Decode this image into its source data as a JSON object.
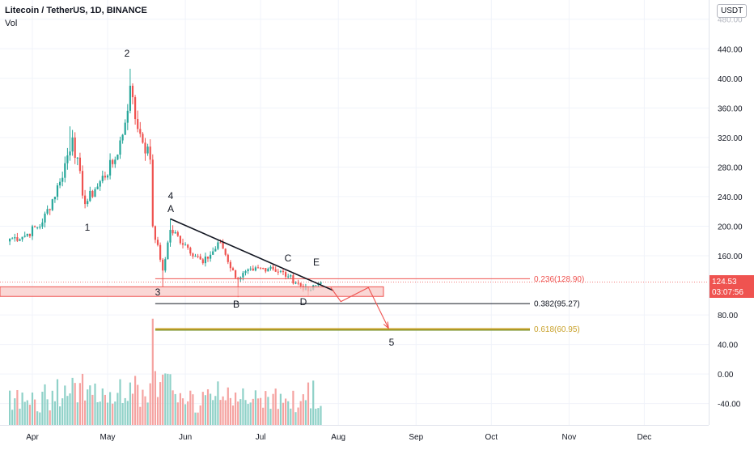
{
  "header": {
    "title": "Litecoin / TetherUS, 1D, BINANCE",
    "volume_label": "Vol",
    "currency": "USDT"
  },
  "price_axis": {
    "ticks": [
      "440.00",
      "400.00",
      "360.00",
      "320.00",
      "280.00",
      "240.00",
      "200.00",
      "160.00",
      "80.00",
      "40.00",
      "0.00",
      "-40.00"
    ],
    "top_partial": "480.00"
  },
  "time_axis": {
    "ticks": [
      "Apr",
      "May",
      "Jun",
      "Jul",
      "Aug",
      "Sep",
      "Oct",
      "Nov",
      "Dec"
    ]
  },
  "last_price": {
    "price": "124.53",
    "countdown": "03:07:56"
  },
  "fib_levels": [
    {
      "label": "0.236(128.90)",
      "color": "#ef5350"
    },
    {
      "label": "0.382(95.27)",
      "color": "#131722"
    },
    {
      "label": "0.618(60.95)",
      "color": "#c8a028"
    }
  ],
  "wave_labels": [
    "1",
    "2",
    "3",
    "4",
    "5",
    "A",
    "B",
    "C",
    "D",
    "E"
  ],
  "colors": {
    "up": "#26a69a",
    "down": "#ef5350",
    "volume_up": "#8fd1c8",
    "volume_down": "#f5a3a1",
    "zone": "#f8c9c7",
    "trendline": "#131722"
  },
  "chart_data": {
    "type": "candlestick",
    "title": "Litecoin / TetherUS, 1D, BINANCE",
    "ylabel": "USDT",
    "ylim": [
      -60,
      500
    ],
    "x_ticks": [
      "Apr",
      "May",
      "Jun",
      "Jul",
      "Aug",
      "Sep",
      "Oct",
      "Nov",
      "Dec"
    ],
    "close_anchors": [
      {
        "date": "2021-03-23",
        "close": 183
      },
      {
        "date": "2021-03-29",
        "close": 187
      },
      {
        "date": "2021-04-05",
        "close": 205
      },
      {
        "date": "2021-04-12",
        "close": 260
      },
      {
        "date": "2021-04-17",
        "close": 320
      },
      {
        "date": "2021-04-22",
        "close": 230
      },
      {
        "date": "2021-04-26",
        "close": 250
      },
      {
        "date": "2021-05-04",
        "close": 290
      },
      {
        "date": "2021-05-08",
        "close": 340
      },
      {
        "date": "2021-05-10",
        "close": 390
      },
      {
        "date": "2021-05-12",
        "close": 345
      },
      {
        "date": "2021-05-14",
        "close": 325
      },
      {
        "date": "2021-05-18",
        "close": 290
      },
      {
        "date": "2021-05-19",
        "close": 200
      },
      {
        "date": "2021-05-23",
        "close": 140
      },
      {
        "date": "2021-05-26",
        "close": 195
      },
      {
        "date": "2021-06-01",
        "close": 175
      },
      {
        "date": "2021-06-08",
        "close": 150
      },
      {
        "date": "2021-06-15",
        "close": 178
      },
      {
        "date": "2021-06-21",
        "close": 130
      },
      {
        "date": "2021-06-28",
        "close": 140
      },
      {
        "date": "2021-07-05",
        "close": 145
      },
      {
        "date": "2021-07-12",
        "close": 132
      },
      {
        "date": "2021-07-20",
        "close": 112
      },
      {
        "date": "2021-07-25",
        "close": 124.53
      }
    ],
    "price_lows": [
      {
        "date": "2021-05-23",
        "low": 118
      },
      {
        "date": "2021-06-22",
        "low": 104
      },
      {
        "date": "2021-07-20",
        "low": 106
      }
    ],
    "price_highs": [
      {
        "date": "2021-04-16",
        "high": 335
      },
      {
        "date": "2021-05-10",
        "high": 413
      },
      {
        "date": "2021-05-26",
        "high": 210
      }
    ],
    "volume_peak": {
      "date": "2021-05-19",
      "value": 75
    },
    "fibonacci": [
      {
        "ratio": 0.236,
        "price": 128.9
      },
      {
        "ratio": 0.382,
        "price": 95.27
      },
      {
        "ratio": 0.618,
        "price": 60.95
      }
    ],
    "support_zone": [
      105,
      118
    ],
    "projection": [
      {
        "date": "2021-07-29",
        "price": 117
      },
      {
        "date": "2021-08-02",
        "price": 98
      },
      {
        "date": "2021-08-13",
        "price": 117
      },
      {
        "date": "2021-08-21",
        "price": 62
      }
    ]
  }
}
